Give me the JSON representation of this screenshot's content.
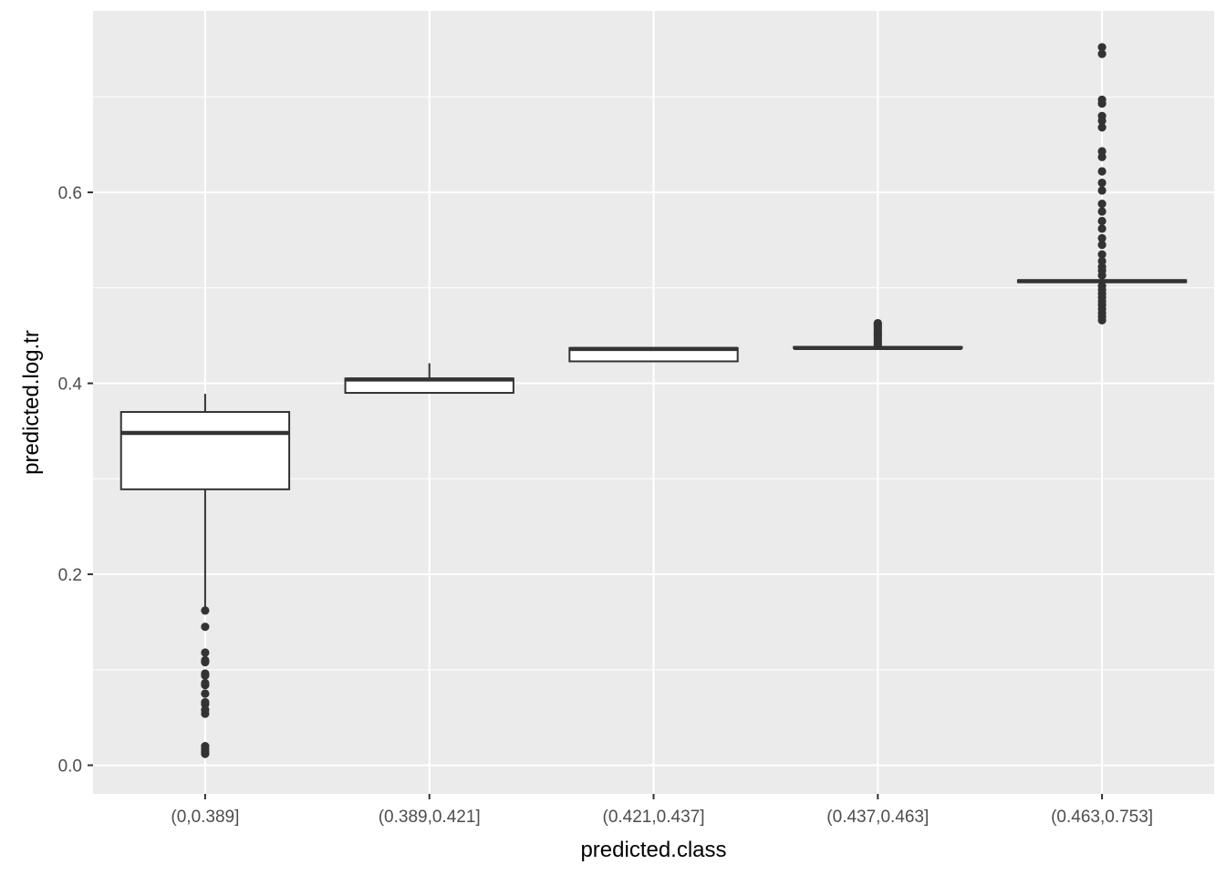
{
  "chart_data": {
    "type": "boxplot",
    "xlabel": "predicted.class",
    "ylabel": "predicted.log.tr",
    "ylim": [
      -0.03,
      0.79
    ],
    "y_ticks": [
      0.0,
      0.2,
      0.4,
      0.6
    ],
    "y_tick_labels": [
      "0.0",
      "0.2",
      "0.4",
      "0.6"
    ],
    "grid": true,
    "categories": [
      "(0,0.389]",
      "(0.389,0.421]",
      "(0.421,0.437]",
      "(0.437,0.463]",
      "(0.463,0.753]"
    ],
    "boxes": [
      {
        "whisker_low": 0.162,
        "q1": 0.289,
        "median": 0.348,
        "q3": 0.37,
        "whisker_high": 0.389,
        "outliers": [
          0.162,
          0.145,
          0.118,
          0.11,
          0.108,
          0.096,
          0.094,
          0.086,
          0.084,
          0.075,
          0.066,
          0.064,
          0.058,
          0.054,
          0.02,
          0.017,
          0.014,
          0.012
        ]
      },
      {
        "whisker_low": 0.39,
        "q1": 0.39,
        "median": 0.404,
        "q3": 0.405,
        "whisker_high": 0.421,
        "outliers": []
      },
      {
        "whisker_low": 0.422,
        "q1": 0.423,
        "median": 0.436,
        "q3": 0.437,
        "whisker_high": 0.437,
        "outliers": []
      },
      {
        "whisker_low": 0.437,
        "q1": 0.437,
        "median": 0.437,
        "q3": 0.438,
        "whisker_high": 0.438,
        "outliers": [
          0.44,
          0.442,
          0.444,
          0.446,
          0.448,
          0.45,
          0.452,
          0.454,
          0.456,
          0.458,
          0.46,
          0.462,
          0.463
        ]
      },
      {
        "whisker_low": 0.506,
        "q1": 0.506,
        "median": 0.507,
        "q3": 0.508,
        "whisker_high": 0.508,
        "outliers": [
          0.752,
          0.745,
          0.697,
          0.693,
          0.68,
          0.675,
          0.668,
          0.643,
          0.637,
          0.622,
          0.61,
          0.602,
          0.588,
          0.58,
          0.57,
          0.562,
          0.552,
          0.545,
          0.535,
          0.528,
          0.522,
          0.518,
          0.513,
          0.502,
          0.498,
          0.494,
          0.49,
          0.486,
          0.482,
          0.478,
          0.474,
          0.47,
          0.466
        ]
      }
    ]
  }
}
